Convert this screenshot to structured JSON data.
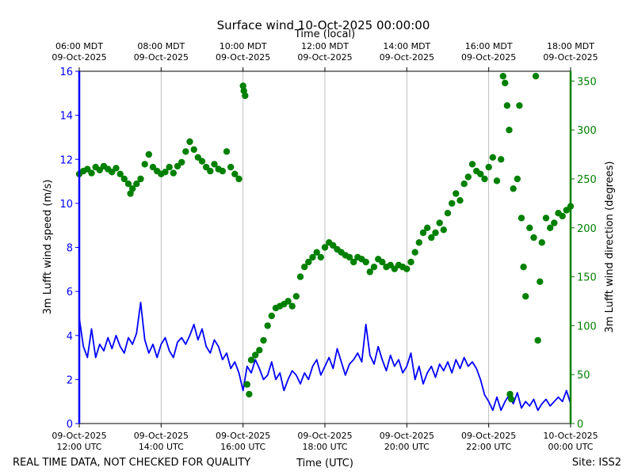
{
  "chart_data": {
    "type": "scatter",
    "title": "Surface wind 10-Oct-2025 00:00:00",
    "xlabel_bottom": "Time (UTC)",
    "xlabel_top": "Time (local)",
    "ylabel_left": "3m Lufft wind speed (m/s)",
    "ylabel_right": "3m Lufft wind direction (degrees)",
    "footer_left": "REAL TIME DATA, NOT CHECKED FOR QUALITY",
    "footer_right": "Site: ISS2",
    "colors": {
      "speed": "#0000ff",
      "direction": "#008000",
      "grid": "#b0b0b0"
    },
    "x_range_hours_utc": [
      12,
      24
    ],
    "ylim_left": [
      0,
      16
    ],
    "ylim_right": [
      0,
      360
    ],
    "yticks_left": [
      "0",
      "2",
      "4",
      "6",
      "8",
      "10",
      "12",
      "14",
      "16"
    ],
    "yticks_right": [
      "0",
      "50",
      "100",
      "150",
      "200",
      "250",
      "300",
      "350"
    ],
    "xticks_bottom": [
      {
        "hour": 12,
        "date": "09-Oct-2025",
        "time": "12:00 UTC"
      },
      {
        "hour": 14,
        "date": "09-Oct-2025",
        "time": "14:00 UTC"
      },
      {
        "hour": 16,
        "date": "09-Oct-2025",
        "time": "16:00 UTC"
      },
      {
        "hour": 18,
        "date": "09-Oct-2025",
        "time": "18:00 UTC"
      },
      {
        "hour": 20,
        "date": "09-Oct-2025",
        "time": "20:00 UTC"
      },
      {
        "hour": 22,
        "date": "09-Oct-2025",
        "time": "22:00 UTC"
      },
      {
        "hour": 24,
        "date": "10-Oct-2025",
        "time": "00:00 UTC"
      }
    ],
    "xticks_top": [
      {
        "hour": 12,
        "time": "06:00 MDT",
        "date": "09-Oct-2025"
      },
      {
        "hour": 14,
        "time": "08:00 MDT",
        "date": "09-Oct-2025"
      },
      {
        "hour": 16,
        "time": "10:00 MDT",
        "date": "09-Oct-2025"
      },
      {
        "hour": 18,
        "time": "12:00 MDT",
        "date": "09-Oct-2025"
      },
      {
        "hour": 20,
        "time": "14:00 MDT",
        "date": "09-Oct-2025"
      },
      {
        "hour": 22,
        "time": "16:00 MDT",
        "date": "09-Oct-2025"
      },
      {
        "hour": 24,
        "time": "18:00 MDT",
        "date": "09-Oct-2025"
      }
    ],
    "series": [
      {
        "name": "3m Lufft wind speed",
        "axis": "left",
        "style": "line",
        "points": [
          [
            12.0,
            4.8
          ],
          [
            12.1,
            3.5
          ],
          [
            12.2,
            3.0
          ],
          [
            12.3,
            4.3
          ],
          [
            12.4,
            3.0
          ],
          [
            12.5,
            3.6
          ],
          [
            12.6,
            3.3
          ],
          [
            12.7,
            3.9
          ],
          [
            12.8,
            3.4
          ],
          [
            12.9,
            4.0
          ],
          [
            13.0,
            3.5
          ],
          [
            13.1,
            3.2
          ],
          [
            13.2,
            3.9
          ],
          [
            13.3,
            3.6
          ],
          [
            13.4,
            4.1
          ],
          [
            13.5,
            5.5
          ],
          [
            13.6,
            3.8
          ],
          [
            13.7,
            3.2
          ],
          [
            13.8,
            3.6
          ],
          [
            13.9,
            3.0
          ],
          [
            14.0,
            3.6
          ],
          [
            14.1,
            3.9
          ],
          [
            14.2,
            3.3
          ],
          [
            14.3,
            3.0
          ],
          [
            14.4,
            3.7
          ],
          [
            14.5,
            3.9
          ],
          [
            14.6,
            3.6
          ],
          [
            14.7,
            4.0
          ],
          [
            14.8,
            4.5
          ],
          [
            14.9,
            3.8
          ],
          [
            15.0,
            4.3
          ],
          [
            15.1,
            3.5
          ],
          [
            15.2,
            3.2
          ],
          [
            15.3,
            3.8
          ],
          [
            15.4,
            3.5
          ],
          [
            15.5,
            2.9
          ],
          [
            15.6,
            3.2
          ],
          [
            15.7,
            2.5
          ],
          [
            15.8,
            2.8
          ],
          [
            15.9,
            2.3
          ],
          [
            16.0,
            1.5
          ],
          [
            16.1,
            2.6
          ],
          [
            16.2,
            2.3
          ],
          [
            16.3,
            2.9
          ],
          [
            16.4,
            2.5
          ],
          [
            16.5,
            2.0
          ],
          [
            16.6,
            2.2
          ],
          [
            16.7,
            2.8
          ],
          [
            16.8,
            2.0
          ],
          [
            16.9,
            2.3
          ],
          [
            17.0,
            1.5
          ],
          [
            17.1,
            2.0
          ],
          [
            17.2,
            2.4
          ],
          [
            17.3,
            2.2
          ],
          [
            17.4,
            1.8
          ],
          [
            17.5,
            2.3
          ],
          [
            17.6,
            2.0
          ],
          [
            17.7,
            2.6
          ],
          [
            17.8,
            2.9
          ],
          [
            17.9,
            2.2
          ],
          [
            18.0,
            2.6
          ],
          [
            18.1,
            3.0
          ],
          [
            18.2,
            2.5
          ],
          [
            18.3,
            3.4
          ],
          [
            18.4,
            2.8
          ],
          [
            18.5,
            2.2
          ],
          [
            18.6,
            2.7
          ],
          [
            18.7,
            2.9
          ],
          [
            18.8,
            3.2
          ],
          [
            18.9,
            2.8
          ],
          [
            19.0,
            4.5
          ],
          [
            19.1,
            3.1
          ],
          [
            19.2,
            2.7
          ],
          [
            19.3,
            3.5
          ],
          [
            19.4,
            2.9
          ],
          [
            19.5,
            2.4
          ],
          [
            19.6,
            3.1
          ],
          [
            19.7,
            2.6
          ],
          [
            19.8,
            2.9
          ],
          [
            19.9,
            2.3
          ],
          [
            20.0,
            2.6
          ],
          [
            20.1,
            3.2
          ],
          [
            20.2,
            2.0
          ],
          [
            20.3,
            2.6
          ],
          [
            20.4,
            1.8
          ],
          [
            20.5,
            2.3
          ],
          [
            20.6,
            2.6
          ],
          [
            20.7,
            2.1
          ],
          [
            20.8,
            2.7
          ],
          [
            20.9,
            2.4
          ],
          [
            21.0,
            2.8
          ],
          [
            21.1,
            2.3
          ],
          [
            21.2,
            2.9
          ],
          [
            21.3,
            2.5
          ],
          [
            21.4,
            3.0
          ],
          [
            21.5,
            2.6
          ],
          [
            21.6,
            2.8
          ],
          [
            21.7,
            2.5
          ],
          [
            21.8,
            2.0
          ],
          [
            21.9,
            1.3
          ],
          [
            22.0,
            1.0
          ],
          [
            22.1,
            0.6
          ],
          [
            22.2,
            1.2
          ],
          [
            22.3,
            0.6
          ],
          [
            22.4,
            1.0
          ],
          [
            22.5,
            1.3
          ],
          [
            22.6,
            0.9
          ],
          [
            22.7,
            1.4
          ],
          [
            22.8,
            0.7
          ],
          [
            22.9,
            1.0
          ],
          [
            23.0,
            0.8
          ],
          [
            23.1,
            1.1
          ],
          [
            23.2,
            0.6
          ],
          [
            23.3,
            0.9
          ],
          [
            23.4,
            1.1
          ],
          [
            23.5,
            0.8
          ],
          [
            23.6,
            1.0
          ],
          [
            23.7,
            1.2
          ],
          [
            23.8,
            1.0
          ],
          [
            23.9,
            1.5
          ],
          [
            24.0,
            0.9
          ]
        ]
      },
      {
        "name": "3m Lufft wind direction",
        "axis": "right",
        "style": "markers",
        "points": [
          [
            12.0,
            255
          ],
          [
            12.1,
            258
          ],
          [
            12.2,
            260
          ],
          [
            12.3,
            256
          ],
          [
            12.4,
            262
          ],
          [
            12.5,
            259
          ],
          [
            12.6,
            263
          ],
          [
            12.7,
            260
          ],
          [
            12.8,
            257
          ],
          [
            12.9,
            261
          ],
          [
            13.0,
            255
          ],
          [
            13.1,
            250
          ],
          [
            13.2,
            245
          ],
          [
            13.25,
            235
          ],
          [
            13.3,
            240
          ],
          [
            13.4,
            245
          ],
          [
            13.5,
            250
          ],
          [
            13.6,
            265
          ],
          [
            13.7,
            275
          ],
          [
            13.8,
            262
          ],
          [
            13.9,
            258
          ],
          [
            14.0,
            255
          ],
          [
            14.1,
            257
          ],
          [
            14.2,
            262
          ],
          [
            14.3,
            256
          ],
          [
            14.4,
            263
          ],
          [
            14.5,
            267
          ],
          [
            14.6,
            278
          ],
          [
            14.7,
            288
          ],
          [
            14.8,
            280
          ],
          [
            14.9,
            272
          ],
          [
            15.0,
            268
          ],
          [
            15.1,
            262
          ],
          [
            15.2,
            258
          ],
          [
            15.3,
            265
          ],
          [
            15.4,
            260
          ],
          [
            15.5,
            258
          ],
          [
            15.6,
            278
          ],
          [
            15.7,
            262
          ],
          [
            15.8,
            255
          ],
          [
            15.9,
            250
          ],
          [
            16.0,
            345
          ],
          [
            16.02,
            340
          ],
          [
            16.05,
            335
          ],
          [
            16.1,
            40
          ],
          [
            16.15,
            30
          ],
          [
            16.2,
            65
          ],
          [
            16.3,
            70
          ],
          [
            16.4,
            75
          ],
          [
            16.5,
            85
          ],
          [
            16.6,
            100
          ],
          [
            16.7,
            110
          ],
          [
            16.8,
            118
          ],
          [
            16.9,
            120
          ],
          [
            17.0,
            122
          ],
          [
            17.1,
            125
          ],
          [
            17.2,
            120
          ],
          [
            17.3,
            130
          ],
          [
            17.4,
            150
          ],
          [
            17.5,
            160
          ],
          [
            17.6,
            165
          ],
          [
            17.7,
            170
          ],
          [
            17.8,
            175
          ],
          [
            17.9,
            170
          ],
          [
            18.0,
            180
          ],
          [
            18.1,
            185
          ],
          [
            18.2,
            182
          ],
          [
            18.3,
            178
          ],
          [
            18.4,
            175
          ],
          [
            18.5,
            172
          ],
          [
            18.6,
            170
          ],
          [
            18.7,
            165
          ],
          [
            18.8,
            170
          ],
          [
            18.9,
            168
          ],
          [
            19.0,
            165
          ],
          [
            19.1,
            155
          ],
          [
            19.2,
            160
          ],
          [
            19.3,
            168
          ],
          [
            19.4,
            165
          ],
          [
            19.5,
            160
          ],
          [
            19.6,
            162
          ],
          [
            19.7,
            158
          ],
          [
            19.8,
            162
          ],
          [
            19.9,
            160
          ],
          [
            20.0,
            158
          ],
          [
            20.1,
            165
          ],
          [
            20.2,
            175
          ],
          [
            20.3,
            185
          ],
          [
            20.4,
            195
          ],
          [
            20.5,
            200
          ],
          [
            20.6,
            190
          ],
          [
            20.7,
            195
          ],
          [
            20.8,
            205
          ],
          [
            20.9,
            198
          ],
          [
            21.0,
            215
          ],
          [
            21.1,
            225
          ],
          [
            21.2,
            235
          ],
          [
            21.3,
            228
          ],
          [
            21.4,
            245
          ],
          [
            21.5,
            252
          ],
          [
            21.6,
            265
          ],
          [
            21.7,
            258
          ],
          [
            21.8,
            255
          ],
          [
            21.9,
            250
          ],
          [
            22.0,
            262
          ],
          [
            22.1,
            272
          ],
          [
            22.2,
            248
          ],
          [
            22.3,
            270
          ],
          [
            22.35,
            355
          ],
          [
            22.4,
            348
          ],
          [
            22.45,
            325
          ],
          [
            22.5,
            300
          ],
          [
            22.52,
            30
          ],
          [
            22.55,
            25
          ],
          [
            22.6,
            240
          ],
          [
            22.7,
            250
          ],
          [
            22.75,
            325
          ],
          [
            22.8,
            210
          ],
          [
            22.85,
            160
          ],
          [
            22.9,
            130
          ],
          [
            23.0,
            200
          ],
          [
            23.1,
            190
          ],
          [
            23.15,
            355
          ],
          [
            23.2,
            85
          ],
          [
            23.25,
            145
          ],
          [
            23.3,
            185
          ],
          [
            23.4,
            210
          ],
          [
            23.5,
            200
          ],
          [
            23.6,
            205
          ],
          [
            23.7,
            215
          ],
          [
            23.8,
            212
          ],
          [
            23.9,
            218
          ],
          [
            24.0,
            222
          ]
        ]
      }
    ]
  }
}
